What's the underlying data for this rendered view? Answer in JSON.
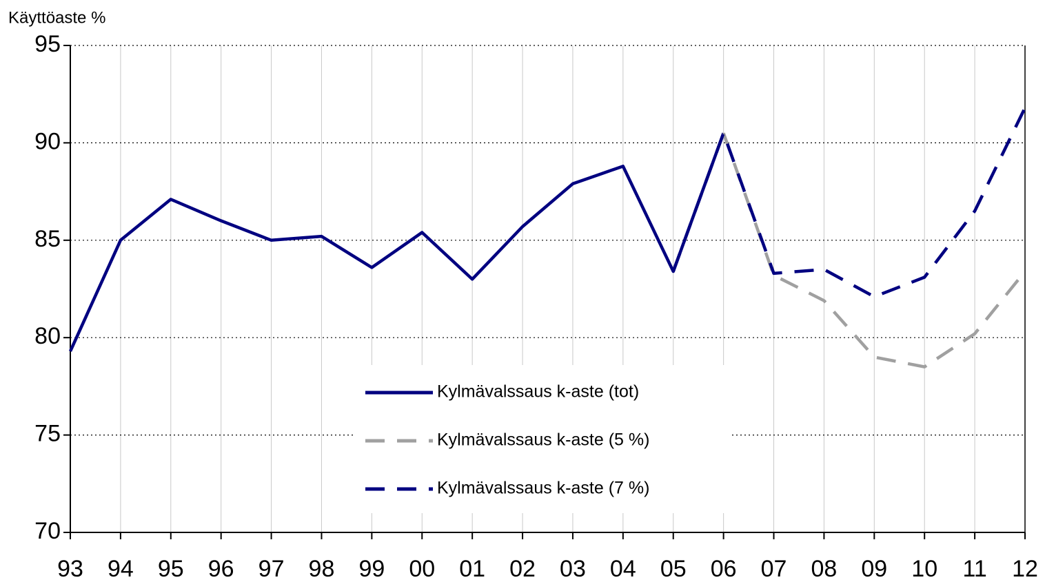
{
  "chart_data": {
    "type": "line",
    "y_axis_label": "Käyttöaste %",
    "categories": [
      "93",
      "94",
      "95",
      "96",
      "97",
      "98",
      "99",
      "00",
      "01",
      "02",
      "03",
      "04",
      "05",
      "06",
      "07",
      "08",
      "09",
      "10",
      "11",
      "12"
    ],
    "series": [
      {
        "name": "Kylmävalssaus k-aste (tot)",
        "color": "#000080",
        "dash": false,
        "values": [
          79.3,
          85.0,
          87.1,
          86.0,
          85.0,
          85.2,
          83.6,
          85.4,
          83.0,
          85.7,
          87.9,
          88.8,
          83.4,
          90.5,
          null,
          null,
          null,
          null,
          null,
          null
        ]
      },
      {
        "name": "Kylmävalssaus k-aste (5 %)",
        "color": "#a0a0a0",
        "dash": true,
        "values": [
          null,
          null,
          null,
          null,
          null,
          null,
          null,
          null,
          null,
          null,
          null,
          null,
          null,
          90.5,
          83.2,
          81.9,
          79.0,
          78.5,
          80.2,
          83.4
        ]
      },
      {
        "name": "Kylmävalssaus k-aste (7 %)",
        "color": "#000080",
        "dash": true,
        "values": [
          null,
          null,
          null,
          null,
          null,
          null,
          null,
          null,
          null,
          null,
          null,
          null,
          83.4,
          90.5,
          83.3,
          83.5,
          82.1,
          83.1,
          86.5,
          91.8
        ]
      }
    ],
    "ylim": [
      70,
      95
    ],
    "yticks": [
      70,
      75,
      80,
      85,
      90,
      95
    ],
    "grid": true
  }
}
